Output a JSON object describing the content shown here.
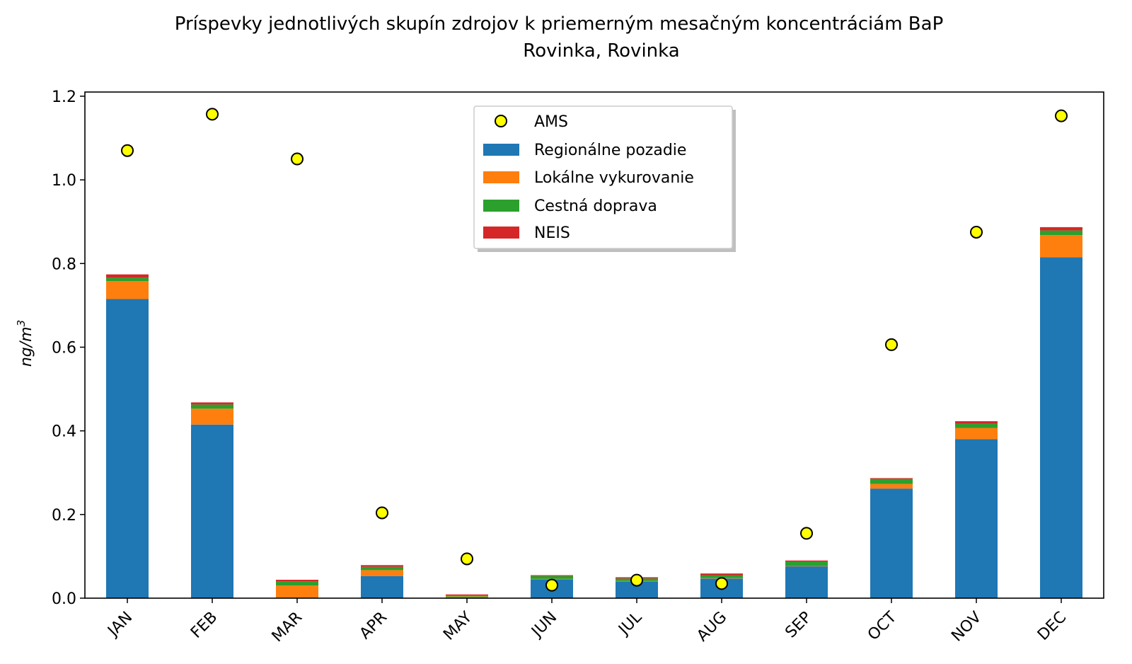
{
  "chart_data": {
    "type": "bar",
    "title": "Príspevky jednotlivých skupín zdrojov k priemerným mesačným koncentráciám BaP",
    "subtitle": "Rovinka, Rovinka",
    "xlabel": "",
    "ylabel": "ng/m",
    "ylabel_sup": "3",
    "ylim": [
      0,
      1.21
    ],
    "yticks": [
      0.0,
      0.2,
      0.4,
      0.6,
      0.8,
      1.0,
      1.2
    ],
    "ytick_labels": [
      "0.0",
      "0.2",
      "0.4",
      "0.6",
      "0.8",
      "1.0",
      "1.2"
    ],
    "categories": [
      "JAN",
      "FEB",
      "MAR",
      "APR",
      "MAY",
      "JUN",
      "JUL",
      "AUG",
      "SEP",
      "OCT",
      "NOV",
      "DEC"
    ],
    "stacked": true,
    "legend_position": "upper-center",
    "series": [
      {
        "name": "Regionálne pozadie",
        "color": "#1f77b4",
        "values": [
          0.715,
          0.415,
          0.0,
          0.053,
          0.002,
          0.045,
          0.04,
          0.047,
          0.076,
          0.262,
          0.38,
          0.815
        ]
      },
      {
        "name": "Lokálne vykurovanie",
        "color": "#ff7f0e",
        "values": [
          0.043,
          0.038,
          0.03,
          0.014,
          0.002,
          0.001,
          0.001,
          0.001,
          0.001,
          0.011,
          0.027,
          0.053
        ]
      },
      {
        "name": "Cestná doprava",
        "color": "#2ca02c",
        "values": [
          0.008,
          0.01,
          0.01,
          0.008,
          0.003,
          0.007,
          0.006,
          0.007,
          0.011,
          0.012,
          0.01,
          0.011
        ]
      },
      {
        "name": "NEIS",
        "color": "#d62728",
        "values": [
          0.008,
          0.005,
          0.004,
          0.004,
          0.002,
          0.002,
          0.003,
          0.004,
          0.002,
          0.002,
          0.006,
          0.008
        ]
      }
    ],
    "points": {
      "name": "AMS",
      "color": "#ffff00",
      "edge_color": "#000000",
      "values": [
        1.07,
        1.157,
        1.05,
        0.204,
        0.094,
        0.031,
        0.043,
        0.035,
        0.155,
        0.606,
        0.875,
        1.153
      ]
    }
  }
}
